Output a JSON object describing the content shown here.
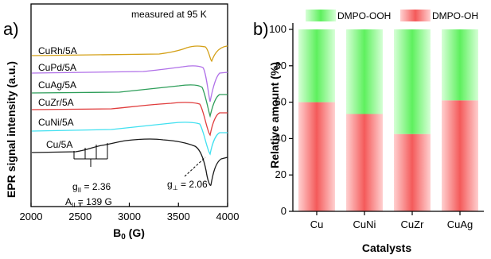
{
  "chart_data": [
    {
      "panel": "a)",
      "type": "line",
      "xlabel_main": "B",
      "xlabel_sub": "0",
      "xlabel_unit": " (G)",
      "ylabel": "EPR signal intensity (a.u.)",
      "annotation": "measured at 95 K",
      "xlim": [
        2000,
        4000
      ],
      "xticks": [
        2000,
        2500,
        3000,
        3500,
        4000
      ],
      "series": [
        {
          "name": "Cu/5A",
          "color": "#1a1a1a"
        },
        {
          "name": "CuNi/5A",
          "color": "#40e0f0"
        },
        {
          "name": "CuZr/5A",
          "color": "#e03c3c"
        },
        {
          "name": "CuAg/5A",
          "color": "#2e9e5a"
        },
        {
          "name": "CuPd/5A",
          "color": "#b070e8"
        },
        {
          "name": "CuRh/5A",
          "color": "#d4a017"
        }
      ],
      "g_parallel": {
        "label": "g",
        "sub": "II",
        "value": " = 2.36"
      },
      "A_parallel": {
        "label": "A",
        "sub": "II",
        "value": " = 139 G"
      },
      "g_perp": {
        "label": "g",
        "sub": "⊥",
        "value": " = 2.06"
      }
    },
    {
      "panel": "b)",
      "type": "bar",
      "stacked": true,
      "categories": [
        "Cu",
        "CuNi",
        "CuZr",
        "CuAg"
      ],
      "series": [
        {
          "name": "DMPO-OH",
          "values": [
            60,
            53.5,
            42.5,
            61
          ],
          "color": "#f45a5a"
        },
        {
          "name": "DMPO-OOH",
          "values": [
            40,
            46.5,
            57.5,
            39
          ],
          "color": "#5ef05e"
        }
      ],
      "xlabel": "Catalysts",
      "ylabel": "Relative amount (%)",
      "ylim": [
        0,
        100
      ],
      "yticks": [
        0,
        20,
        40,
        60,
        80,
        100
      ],
      "legend": "top"
    }
  ]
}
